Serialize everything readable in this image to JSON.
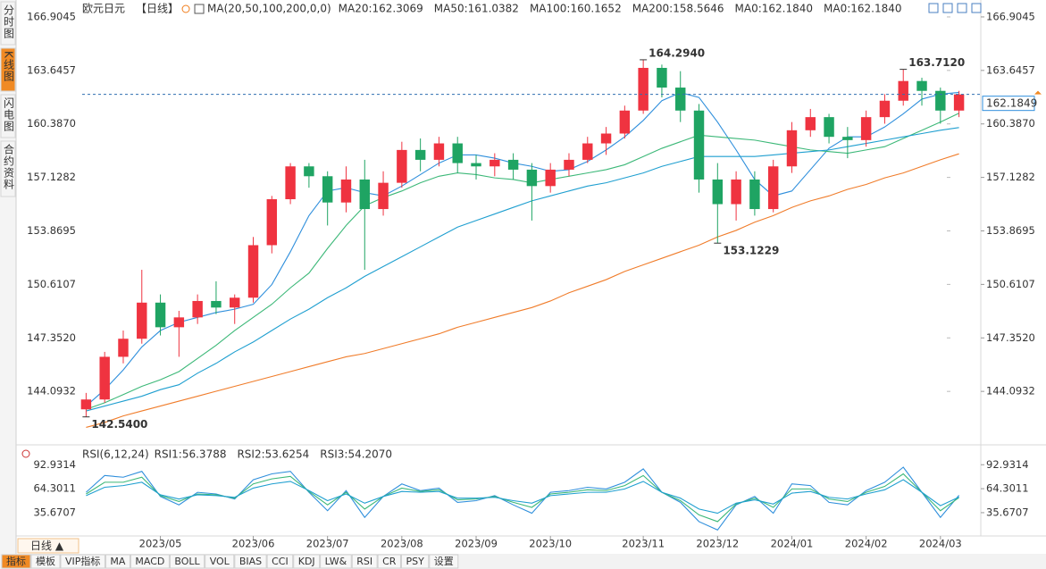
{
  "ui": {
    "sidebar_tabs": [
      "分时图",
      "K线图",
      "闪电图",
      "合约资料"
    ],
    "period_button": "日线 ▲",
    "toolbar": [
      "指标",
      "模板",
      "VIP指标",
      "MA",
      "MACD",
      "BOLL",
      "VOL",
      "BIAS",
      "CCI",
      "KDJ",
      "LW&",
      "RSI",
      "CR",
      "PSY",
      "设置"
    ]
  },
  "chart_data": [
    {
      "type": "candlestick",
      "symbol": "欧元日元",
      "period": "【日线】",
      "indicator": "MA(20,50,100,200,0,0)",
      "categories": [
        null,
        null,
        null,
        null,
        "2023/05",
        null,
        null,
        null,
        null,
        "2023/06",
        null,
        null,
        null,
        "2023/07",
        null,
        null,
        null,
        "2023/08",
        null,
        null,
        null,
        "2023/09",
        null,
        null,
        null,
        "2023/10",
        null,
        null,
        null,
        null,
        "2023/11",
        null,
        null,
        null,
        "2023/12",
        null,
        null,
        null,
        "2024/01",
        null,
        null,
        null,
        "2024/02",
        null,
        null,
        null,
        "2024/03",
        null
      ],
      "open": [
        143,
        143.6,
        146.2,
        147.3,
        149.5,
        148,
        148.6,
        149.6,
        149.2,
        149.8,
        153,
        155.8,
        157.8,
        157.2,
        155.6,
        157,
        155.2,
        156.8,
        158.8,
        158.2,
        159.2,
        158,
        157.8,
        158.2,
        157.6,
        156.6,
        157.6,
        158.2,
        159.2,
        159.8,
        161.2,
        163.8,
        162.6,
        161.2,
        157,
        155.5,
        157,
        155.2,
        157.8,
        160,
        160.8,
        159.6,
        159.4,
        160.8,
        161.8,
        163,
        162.4,
        161.2
      ],
      "high": [
        144,
        146.5,
        147.8,
        151.5,
        150,
        149,
        150,
        150.8,
        150,
        153.5,
        156,
        158,
        158,
        157.5,
        157.8,
        158.2,
        157.5,
        159.3,
        159.5,
        159.6,
        159.6,
        158.5,
        158.6,
        158.6,
        158,
        158,
        158.6,
        159.6,
        160.2,
        161.5,
        164.294,
        164,
        163.6,
        161.6,
        158,
        157.5,
        157.5,
        158.2,
        160.5,
        161.3,
        161,
        160.2,
        161.2,
        162.2,
        163.712,
        163.2,
        162.6,
        162.4
      ],
      "low": [
        142.54,
        143.4,
        145.8,
        147,
        147.5,
        146.2,
        148.2,
        148.8,
        148.2,
        149.5,
        152.5,
        155.5,
        156.5,
        154.2,
        155,
        151.5,
        154.8,
        156.5,
        157.5,
        157.8,
        157.4,
        157,
        157.2,
        157,
        154.5,
        156.2,
        157.2,
        158,
        158.5,
        159.5,
        161,
        162,
        160.5,
        156.2,
        153.1229,
        154.5,
        154.8,
        155,
        157.4,
        159.6,
        159.2,
        158.3,
        159,
        160.4,
        161.5,
        161.5,
        160.4,
        160.8
      ],
      "close": [
        143.6,
        146.2,
        147.3,
        149.5,
        148,
        148.6,
        149.6,
        149.2,
        149.8,
        153,
        155.8,
        157.8,
        157.2,
        155.6,
        157,
        155.2,
        156.8,
        158.8,
        158.2,
        159.2,
        158,
        157.8,
        158.2,
        157.6,
        156.6,
        157.6,
        158.2,
        159.2,
        159.8,
        161.2,
        163.8,
        162.6,
        161.2,
        157,
        155.5,
        157,
        155.2,
        157.8,
        160,
        160.8,
        159.6,
        159.4,
        160.8,
        161.8,
        163,
        162.4,
        161.2,
        162.1849
      ],
      "last_price_label": "162.1849",
      "up_color": "#ef3340",
      "down_color": "#1fa463",
      "ylim": [
        141,
        167.5
      ],
      "yticks": [
        166.9045,
        163.6457,
        {
          "value": 160.387,
          "label": "160.3870"
        },
        157.1282,
        153.8695,
        150.6107,
        {
          "value": 147.352,
          "label": "147.3520"
        },
        144.0932
      ],
      "series": [
        {
          "name": "MA20:162.3069",
          "color": "#2f8fdc",
          "values": [
            143.2,
            144.2,
            145.4,
            146.8,
            147.8,
            148.3,
            148.6,
            148.9,
            149.1,
            149.4,
            150.6,
            152.6,
            154.8,
            156.3,
            156.5,
            156.2,
            156.0,
            156.6,
            157.3,
            158.0,
            158.5,
            158.5,
            158.3,
            158.0,
            157.8,
            157.5,
            157.6,
            158.1,
            158.8,
            159.6,
            160.6,
            161.8,
            162.3,
            162.0,
            160.5,
            158.8,
            157.0,
            156.0,
            156.3,
            157.6,
            158.9,
            159.6,
            159.6,
            160.2,
            161.0,
            161.9,
            162.2,
            162.3069
          ]
        },
        {
          "name": "MA50:161.0382",
          "color": "#3cb878",
          "values": [
            143.0,
            143.4,
            143.9,
            144.4,
            144.8,
            145.3,
            146.1,
            146.9,
            147.8,
            148.6,
            149.4,
            150.4,
            151.3,
            152.8,
            154.2,
            155.4,
            155.9,
            156.3,
            156.8,
            157.2,
            157.4,
            157.3,
            157.1,
            157.0,
            156.8,
            157.0,
            157.2,
            157.4,
            157.6,
            157.9,
            158.4,
            158.9,
            159.3,
            159.7,
            159.6,
            159.5,
            159.4,
            159.2,
            159.0,
            158.8,
            158.7,
            158.6,
            158.8,
            159.0,
            159.5,
            160.0,
            160.5,
            161.0382
          ]
        },
        {
          "name": "MA100:160.1652",
          "color": "#1f9fd0",
          "values": [
            142.9,
            143.2,
            143.5,
            143.8,
            144.2,
            144.5,
            145.2,
            145.8,
            146.5,
            147.1,
            147.8,
            148.5,
            149.1,
            149.8,
            150.4,
            151.1,
            151.7,
            152.3,
            152.9,
            153.5,
            154.1,
            154.5,
            154.9,
            155.3,
            155.7,
            156.0,
            156.3,
            156.6,
            156.8,
            157.1,
            157.4,
            157.8,
            158.1,
            158.4,
            158.4,
            158.4,
            158.4,
            158.5,
            158.6,
            158.7,
            158.8,
            159.0,
            159.2,
            159.4,
            159.6,
            159.8,
            160.0,
            160.1652
          ]
        },
        {
          "name": "MA200:158.5646",
          "color": "#f07c2a",
          "values": [
            141.9,
            142.2,
            142.6,
            142.9,
            143.2,
            143.5,
            143.8,
            144.1,
            144.4,
            144.7,
            145.0,
            145.3,
            145.6,
            145.9,
            146.2,
            146.4,
            146.7,
            147.0,
            147.3,
            147.6,
            148.0,
            148.3,
            148.6,
            148.9,
            149.2,
            149.6,
            150.1,
            150.5,
            150.9,
            151.4,
            151.8,
            152.2,
            152.6,
            153.0,
            153.5,
            153.9,
            154.4,
            154.8,
            155.3,
            155.7,
            156.0,
            156.4,
            156.7,
            157.1,
            157.4,
            157.8,
            158.2,
            158.5646
          ]
        }
      ],
      "extra_legend": [
        {
          "name": "MA0:162.1840",
          "color": "#e27bd6"
        },
        {
          "name": "MA0:162.1840",
          "color": "#9b8ce6"
        }
      ],
      "annotations": [
        {
          "value": 164.294,
          "label": "164.2940",
          "color": "#e8404a"
        },
        {
          "value": 153.1229,
          "label": "153.1229",
          "color": "#2fa86a"
        },
        {
          "value": 163.712,
          "label": "163.7120",
          "color": "#e8404a"
        },
        {
          "value": 142.54,
          "label": "142.5400",
          "color": "#7aa83a"
        }
      ]
    },
    {
      "type": "line",
      "indicator": "RSI(6,12,24)",
      "ylim": [
        10,
        106
      ],
      "yticks": [
        92.9314,
        64.3011,
        35.6707
      ],
      "series": [
        {
          "name": "RSI1:56.3788",
          "color": "#2f8fdc",
          "values": [
            60,
            80,
            78,
            85,
            55,
            45,
            60,
            58,
            52,
            75,
            82,
            85,
            60,
            38,
            62,
            30,
            55,
            70,
            62,
            65,
            48,
            50,
            56,
            45,
            35,
            60,
            62,
            66,
            64,
            72,
            88,
            60,
            48,
            25,
            15,
            45,
            55,
            35,
            70,
            68,
            48,
            45,
            62,
            72,
            90,
            60,
            30,
            56.3788
          ]
        },
        {
          "name": "RSI2:53.6254",
          "color": "#3cb878",
          "values": [
            58,
            72,
            72,
            78,
            56,
            49,
            58,
            57,
            53,
            70,
            76,
            79,
            61,
            45,
            60,
            40,
            55,
            65,
            61,
            63,
            51,
            52,
            55,
            48,
            42,
            58,
            60,
            63,
            62,
            68,
            80,
            60,
            50,
            33,
            25,
            46,
            53,
            42,
            64,
            64,
            52,
            49,
            60,
            67,
            82,
            60,
            38,
            53.6254
          ]
        },
        {
          "name": "RSI3:54.2070",
          "color": "#1f9fd0",
          "values": [
            56,
            66,
            68,
            72,
            57,
            52,
            57,
            56,
            54,
            65,
            70,
            73,
            62,
            50,
            58,
            47,
            55,
            61,
            60,
            61,
            53,
            53,
            54,
            50,
            47,
            56,
            58,
            60,
            60,
            64,
            73,
            60,
            53,
            40,
            35,
            47,
            51,
            46,
            59,
            61,
            54,
            52,
            58,
            63,
            75,
            60,
            44,
            54.207
          ]
        }
      ]
    }
  ]
}
